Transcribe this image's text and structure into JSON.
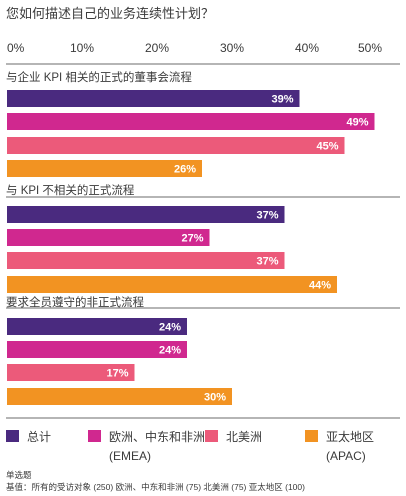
{
  "chart_data": {
    "type": "bar",
    "orientation": "horizontal",
    "title": "您如何描述自己的业务连续性计划？",
    "xlim": [
      0,
      50
    ],
    "x_ticks": [
      "0%",
      "10%",
      "20%",
      "30%",
      "40%",
      "50%"
    ],
    "grid": false,
    "legend_position": "bottom",
    "categories": [
      "与企业 KPI 相关的正式的董事会流程",
      "与 KPI 不相关的正式流程",
      "要求全员遵守的非正式流程"
    ],
    "series": [
      {
        "name": "总计",
        "color": "#4a2a7f",
        "values": [
          39,
          37,
          24
        ],
        "labels": [
          "39%",
          "37%",
          "24%"
        ]
      },
      {
        "name": "欧洲、中东和非洲 (EMEA)",
        "legend_lines": [
          "欧洲、中东和非洲",
          "(EMEA)"
        ],
        "color": "#d0288f",
        "values": [
          49,
          27,
          24
        ],
        "labels": [
          "49%",
          "27%",
          "24%"
        ]
      },
      {
        "name": "北美洲",
        "color": "#ec5a7a",
        "values": [
          45,
          37,
          17
        ],
        "labels": [
          "45%",
          "37%",
          "17%"
        ]
      },
      {
        "name": "亚太地区 (APAC)",
        "legend_lines": [
          "亚太地区",
          "(APAC)"
        ],
        "color": "#f29322",
        "values": [
          26,
          44,
          30
        ],
        "labels": [
          "26%",
          "44%",
          "30%"
        ]
      }
    ],
    "notes": [
      "单选题",
      "基值：所有的受访对象 (250) 欧洲、中东和非洲 (75) 北美洲 (75) 亚太地区 (100)"
    ]
  }
}
